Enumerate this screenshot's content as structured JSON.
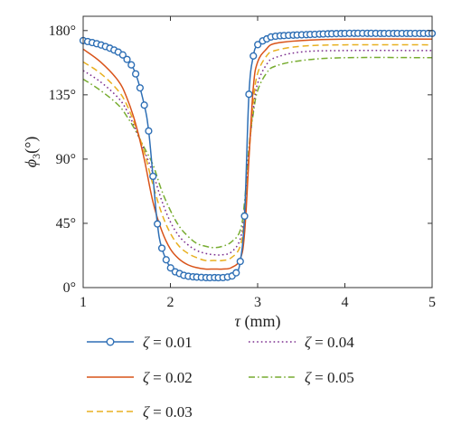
{
  "chart_data": {
    "type": "line",
    "xlabel": {
      "var": "τ",
      "unit": " (mm)"
    },
    "ylabel": {
      "var": "ϕ",
      "sub": "3",
      "unit": "(°)"
    },
    "xlim": [
      1,
      5
    ],
    "ylim": [
      0,
      190
    ],
    "xticks": [
      1,
      2,
      3,
      4,
      5
    ],
    "xtick_labels": [
      "1",
      "2",
      "3",
      "4",
      "5"
    ],
    "yticks": [
      0,
      45,
      90,
      135,
      180
    ],
    "ytick_labels": [
      "0°",
      "45°",
      "90°",
      "135°",
      "180°"
    ],
    "grid": false,
    "legend_position": "below",
    "series": [
      {
        "name": "ζ = 0.01",
        "color": "#2e6fb5",
        "style": "solid",
        "marker": "circle",
        "x": [
          1.0,
          1.2,
          1.4,
          1.5,
          1.6,
          1.7,
          1.75,
          1.8,
          1.85,
          1.9,
          2.0,
          2.1,
          2.2,
          2.4,
          2.5,
          2.6,
          2.7,
          2.75,
          2.8,
          2.85,
          2.9,
          2.95,
          3.0,
          3.1,
          3.2,
          3.5,
          4.0,
          4.5,
          5.0
        ],
        "y": [
          173,
          170,
          165,
          160,
          150,
          128,
          110,
          78,
          45,
          28,
          14,
          10,
          8,
          7,
          7,
          7,
          8,
          10,
          18,
          50,
          135,
          162,
          170,
          174,
          176,
          177,
          178,
          178,
          178
        ]
      },
      {
        "name": "ζ = 0.02",
        "color": "#d95319",
        "style": "solid",
        "marker": "none",
        "x": [
          1.0,
          1.2,
          1.4,
          1.5,
          1.6,
          1.7,
          1.8,
          1.9,
          2.0,
          2.1,
          2.2,
          2.3,
          2.4,
          2.5,
          2.6,
          2.7,
          2.8,
          2.85,
          2.9,
          2.95,
          3.0,
          3.1,
          3.2,
          3.5,
          4.0,
          5.0
        ],
        "y": [
          167,
          158,
          145,
          133,
          115,
          90,
          60,
          40,
          27,
          20,
          16,
          14,
          13,
          13,
          13,
          14,
          20,
          38,
          90,
          140,
          158,
          167,
          171,
          173,
          174,
          174
        ]
      },
      {
        "name": "ζ = 0.03",
        "color": "#e8b020",
        "style": "dashed",
        "marker": "none",
        "x": [
          1.0,
          1.2,
          1.4,
          1.5,
          1.6,
          1.7,
          1.8,
          1.9,
          2.0,
          2.1,
          2.2,
          2.3,
          2.4,
          2.5,
          2.6,
          2.7,
          2.8,
          2.85,
          2.9,
          2.95,
          3.0,
          3.1,
          3.2,
          3.5,
          4.0,
          5.0
        ],
        "y": [
          158,
          150,
          138,
          128,
          113,
          95,
          72,
          52,
          38,
          29,
          24,
          21,
          19,
          19,
          19,
          21,
          29,
          50,
          92,
          130,
          150,
          162,
          166,
          169,
          170,
          170
        ]
      },
      {
        "name": "ζ = 0.04",
        "color": "#7b2d8e",
        "style": "dotted",
        "marker": "none",
        "x": [
          1.0,
          1.2,
          1.4,
          1.5,
          1.6,
          1.7,
          1.8,
          1.9,
          2.0,
          2.1,
          2.2,
          2.3,
          2.4,
          2.5,
          2.6,
          2.7,
          2.8,
          2.85,
          2.9,
          2.95,
          3.0,
          3.1,
          3.2,
          3.5,
          4.0,
          5.0
        ],
        "y": [
          152,
          144,
          133,
          124,
          111,
          96,
          80,
          61,
          46,
          36,
          30,
          26,
          24,
          23,
          23,
          25,
          34,
          55,
          95,
          125,
          143,
          156,
          161,
          165,
          166,
          166
        ]
      },
      {
        "name": "ζ = 0.05",
        "color": "#77ac30",
        "style": "dashdot",
        "marker": "none",
        "x": [
          1.0,
          1.2,
          1.4,
          1.5,
          1.6,
          1.7,
          1.8,
          1.9,
          2.0,
          2.1,
          2.2,
          2.3,
          2.4,
          2.5,
          2.6,
          2.7,
          2.8,
          2.85,
          2.9,
          2.95,
          3.0,
          3.1,
          3.2,
          3.5,
          4.0,
          5.0
        ],
        "y": [
          146,
          138,
          128,
          120,
          110,
          98,
          86,
          68,
          54,
          43,
          36,
          31,
          29,
          28,
          29,
          32,
          40,
          60,
          98,
          122,
          138,
          150,
          155,
          159,
          161,
          161
        ]
      }
    ]
  }
}
